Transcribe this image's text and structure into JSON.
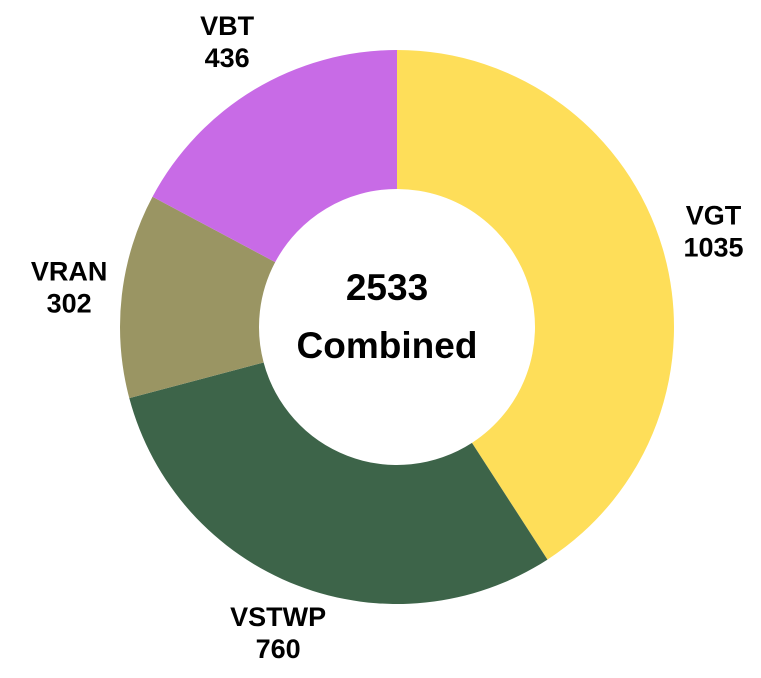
{
  "chart_data": {
    "type": "donut",
    "categories": [
      "VGT",
      "VSTWP",
      "VRAN",
      "VBT"
    ],
    "values": [
      1035,
      760,
      302,
      436
    ],
    "colors": [
      "#fede59",
      "#3d6449",
      "#9a9563",
      "#c86be6"
    ],
    "center_value": 2533,
    "center_label": "Combined"
  }
}
